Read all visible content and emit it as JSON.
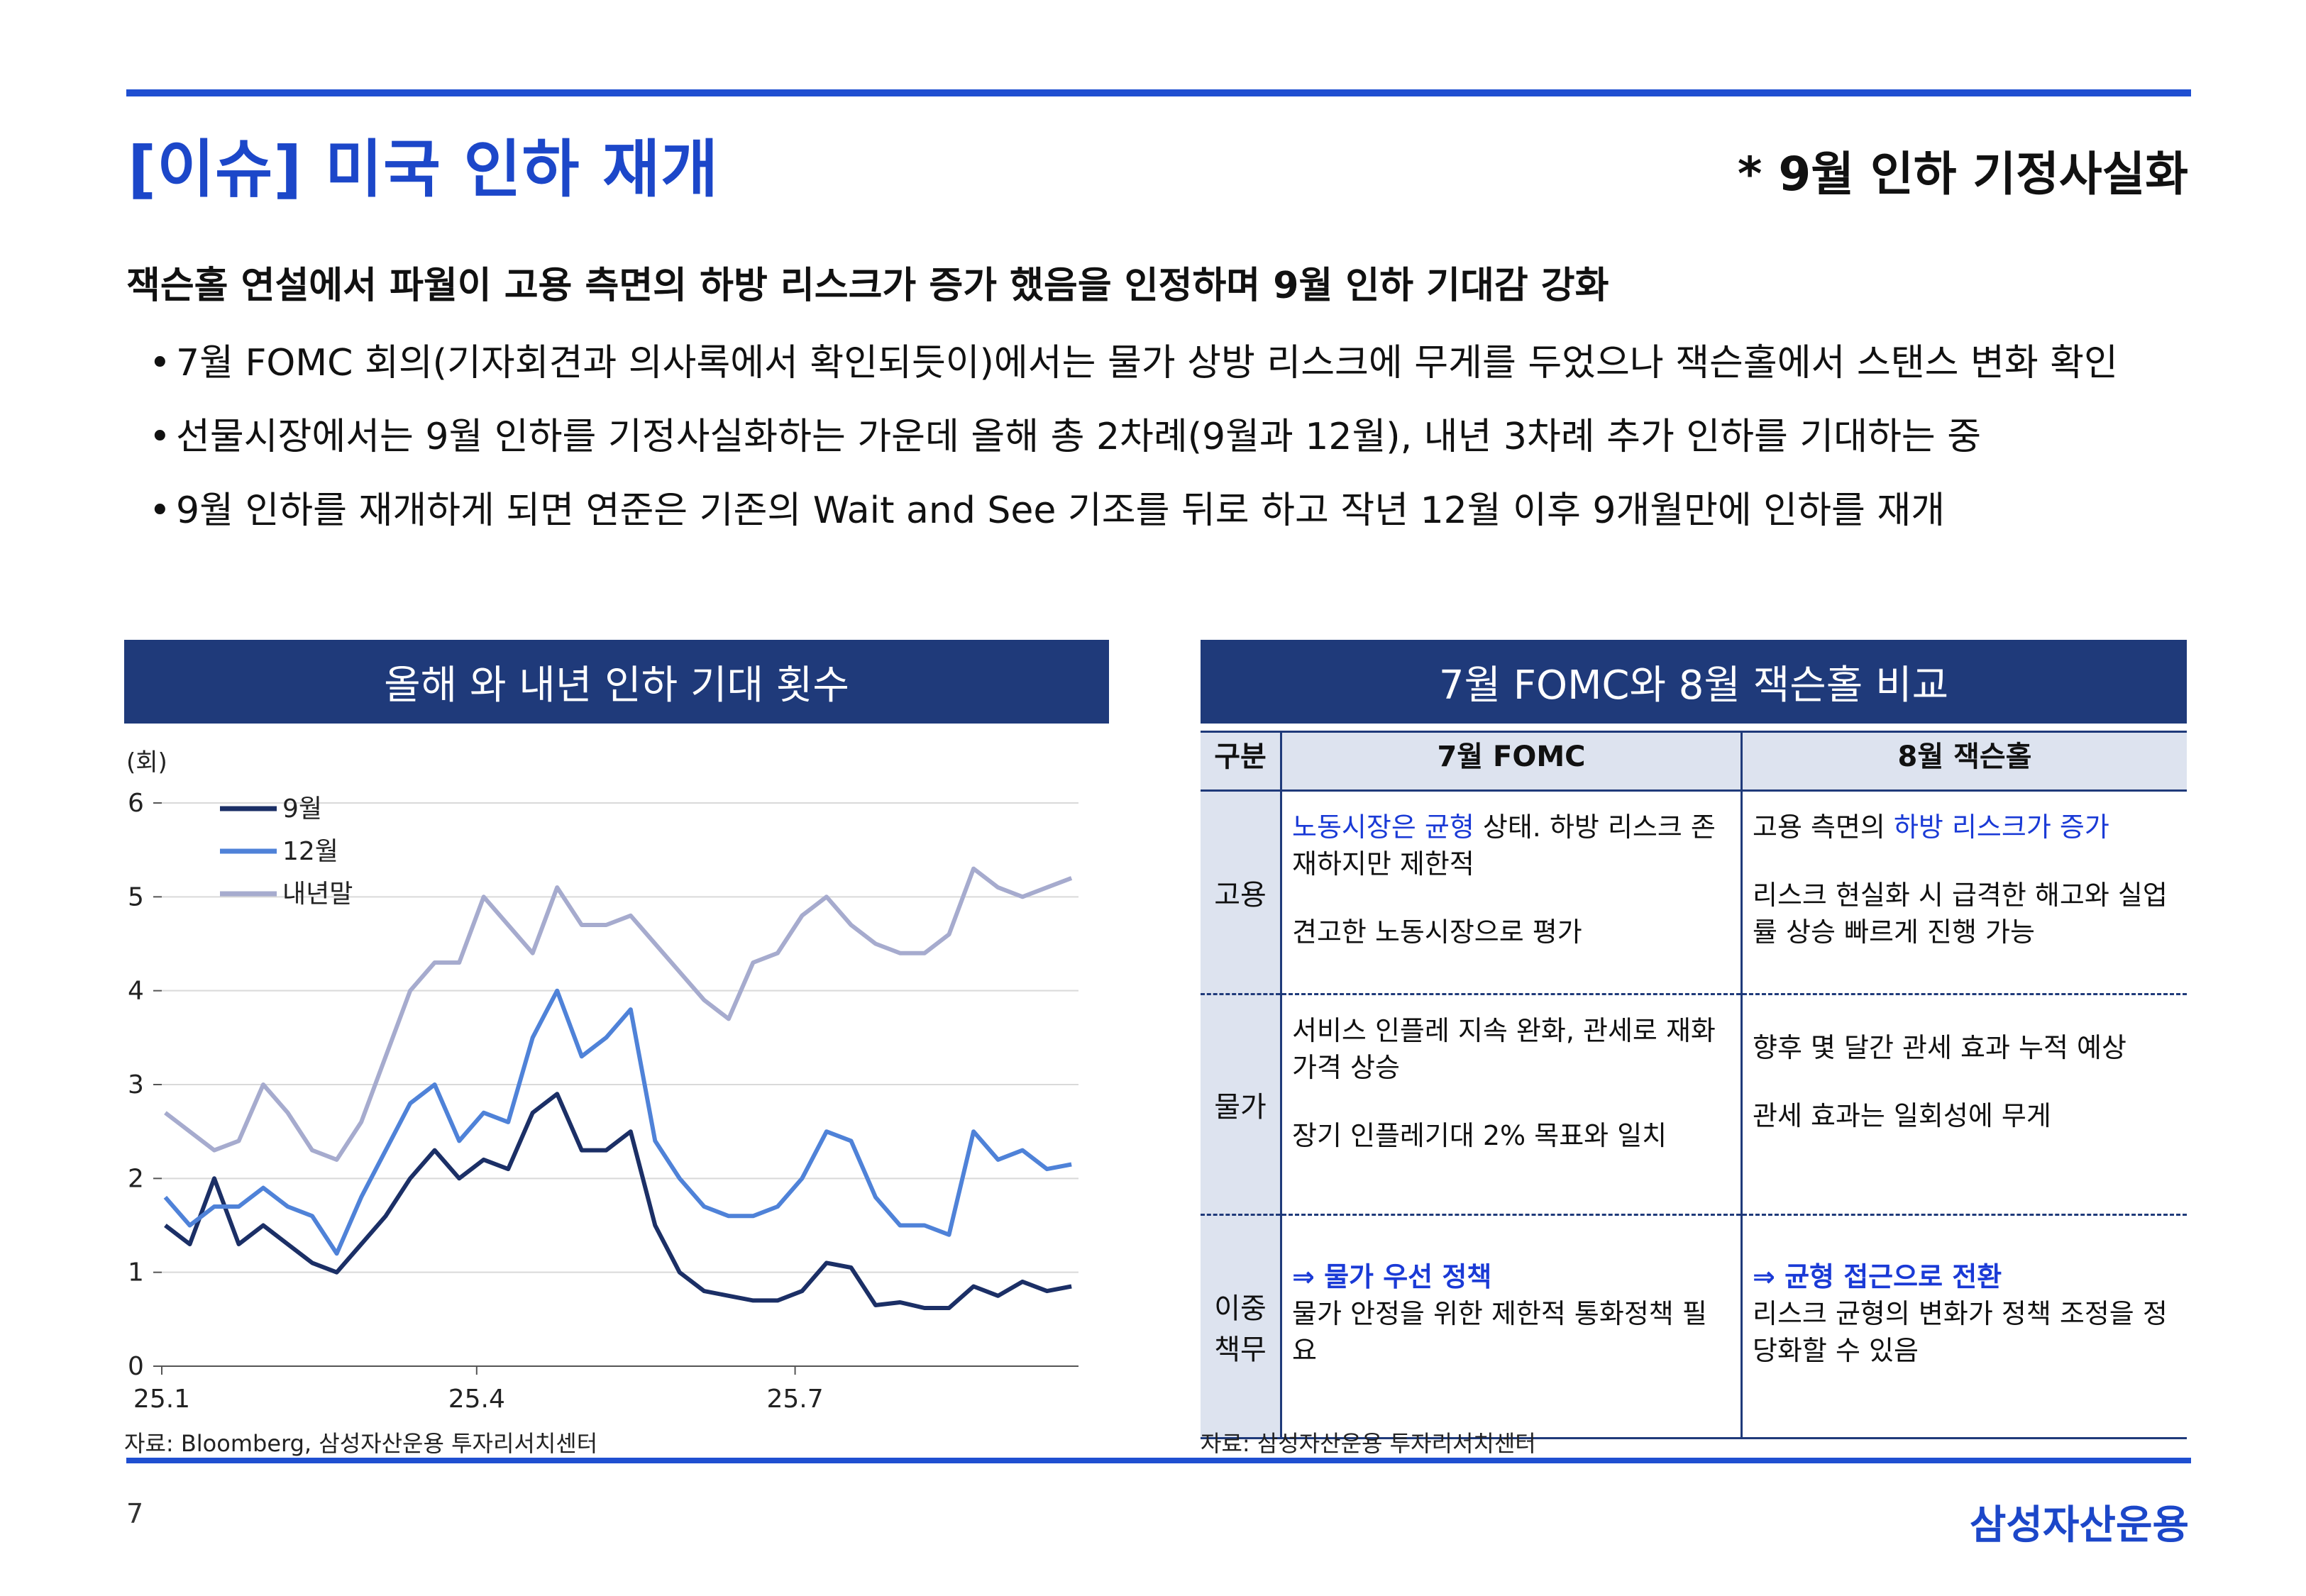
{
  "header": {
    "title": "[이슈] 미국 인하 재개",
    "right_note": "* 9월 인하 기정사실화"
  },
  "lead": "잭슨홀 연설에서 파월이 고용 측면의 하방 리스크가 증가 했음을 인정하며 9월 인하 기대감 강화",
  "bullets": [
    "7월 FOMC 회의(기자회견과 의사록에서 확인되듯이)에서는 물가 상방 리스크에 무게를 두었으나 잭슨홀에서 스탠스 변화 확인",
    "선물시장에서는 9월 인하를 기정사실화하는 가운데 올해 총 2차례(9월과 12월), 내년 3차례 추가 인하를 기대하는 중",
    "9월 인하를 재개하게 되면 연준은 기존의 Wait and See 기조를 뒤로 하고 작년 12월 이후 9개월만에 인하를 재개"
  ],
  "bullet_marker": "•",
  "left_panel": {
    "heading": "올해 와 내년 인하 기대 횟수",
    "source": "자료: Bloomberg, 삼성자산운용 투자리서치센터"
  },
  "right_panel": {
    "heading": "7월 FOMC와 8월 잭슨홀 비교",
    "source": "자료: 삼성자산운용 투자리서치센터",
    "columns": [
      "구분",
      "7월 FOMC",
      "8월 잭슨홀"
    ],
    "rows": [
      {
        "category": "고용",
        "fomc_highlight": "노동시장은 균형",
        "fomc_text_1": " 상태. 하방 리스크 존재하지만 제한적",
        "fomc_text_2": "견고한 노동시장으로 평가",
        "jh_text_1a": "고용 측면의 ",
        "jh_highlight": "하방 리스크가 증가",
        "jh_text_2": "리스크 현실화 시 급격한 해고와 실업률 상승 빠르게 진행 가능"
      },
      {
        "category": "물가",
        "fomc_text_1": "서비스 인플레 지속 완화, 관세로 재화 가격 상승",
        "fomc_text_2": "장기 인플레기대 2% 목표와 일치",
        "jh_text_1": "향후 몇 달간 관세 효과 누적 예상",
        "jh_text_2": "관세 효과는 일회성에 무게"
      },
      {
        "category_line1": "이중",
        "category_line2": "책무",
        "fomc_heading": "⇒ 물가 우선 정책",
        "fomc_text": "물가 안정을 위한 제한적 통화정책 필요",
        "jh_heading": "⇒ 균형 접근으로 전환",
        "jh_text": "리스크 균형의 변화가 정책 조정을 정당화할 수 있음"
      }
    ]
  },
  "footer": {
    "page_number": "7",
    "brand": "삼성자산운용"
  },
  "chart_data": {
    "type": "line",
    "unit_label": "(회)",
    "ylim": [
      0,
      6
    ],
    "yticks": [
      0,
      1,
      2,
      3,
      4,
      5,
      6
    ],
    "xlim": [
      "2025-01-01",
      "2025-09-20"
    ],
    "xticks": [
      {
        "label": "25.1",
        "date": "2025-01-01"
      },
      {
        "label": "25.4",
        "date": "2025-04-01"
      },
      {
        "label": "25.7",
        "date": "2025-07-01"
      }
    ],
    "grid": true,
    "legend_position": "top-left",
    "dates": [
      "2025-01-02",
      "2025-01-09",
      "2025-01-16",
      "2025-01-23",
      "2025-01-30",
      "2025-02-06",
      "2025-02-13",
      "2025-02-20",
      "2025-02-27",
      "2025-03-06",
      "2025-03-13",
      "2025-03-20",
      "2025-03-27",
      "2025-04-03",
      "2025-04-10",
      "2025-04-17",
      "2025-04-24",
      "2025-05-01",
      "2025-05-08",
      "2025-05-15",
      "2025-05-22",
      "2025-05-29",
      "2025-06-05",
      "2025-06-12",
      "2025-06-19",
      "2025-06-26",
      "2025-07-03",
      "2025-07-10",
      "2025-07-17",
      "2025-07-24",
      "2025-07-31",
      "2025-08-07",
      "2025-08-14",
      "2025-08-21",
      "2025-08-28",
      "2025-09-04",
      "2025-09-11",
      "2025-09-18"
    ],
    "series": [
      {
        "name": "9월",
        "color": "#1b2f66",
        "values": [
          1.5,
          1.3,
          2.0,
          1.3,
          1.5,
          1.3,
          1.1,
          1.0,
          1.3,
          1.6,
          2.0,
          2.3,
          2.0,
          2.2,
          2.1,
          2.7,
          2.9,
          2.3,
          2.3,
          2.5,
          1.5,
          1.0,
          0.8,
          0.75,
          0.7,
          0.7,
          0.8,
          1.1,
          1.05,
          0.65,
          0.68,
          0.62,
          0.62,
          0.85,
          0.75,
          0.9,
          0.8,
          0.85
        ]
      },
      {
        "name": "12월",
        "color": "#4f82d8",
        "values": [
          1.8,
          1.5,
          1.7,
          1.7,
          1.9,
          1.7,
          1.6,
          1.2,
          1.8,
          2.3,
          2.8,
          3.0,
          2.4,
          2.7,
          2.6,
          3.5,
          4.0,
          3.3,
          3.5,
          3.8,
          2.4,
          2.0,
          1.7,
          1.6,
          1.6,
          1.7,
          2.0,
          2.5,
          2.4,
          1.8,
          1.5,
          1.5,
          1.4,
          2.5,
          2.2,
          2.3,
          2.1,
          2.15
        ]
      },
      {
        "name": "내년말",
        "color": "#a6abce",
        "values": [
          2.7,
          2.5,
          2.3,
          2.4,
          3.0,
          2.7,
          2.3,
          2.2,
          2.6,
          3.3,
          4.0,
          4.3,
          4.3,
          5.0,
          4.7,
          4.4,
          5.1,
          4.7,
          4.7,
          4.8,
          4.5,
          4.2,
          3.9,
          3.7,
          4.3,
          4.4,
          4.8,
          5.0,
          4.7,
          4.5,
          4.4,
          4.4,
          4.6,
          5.3,
          5.1,
          5.0,
          5.1,
          5.2
        ]
      }
    ]
  }
}
